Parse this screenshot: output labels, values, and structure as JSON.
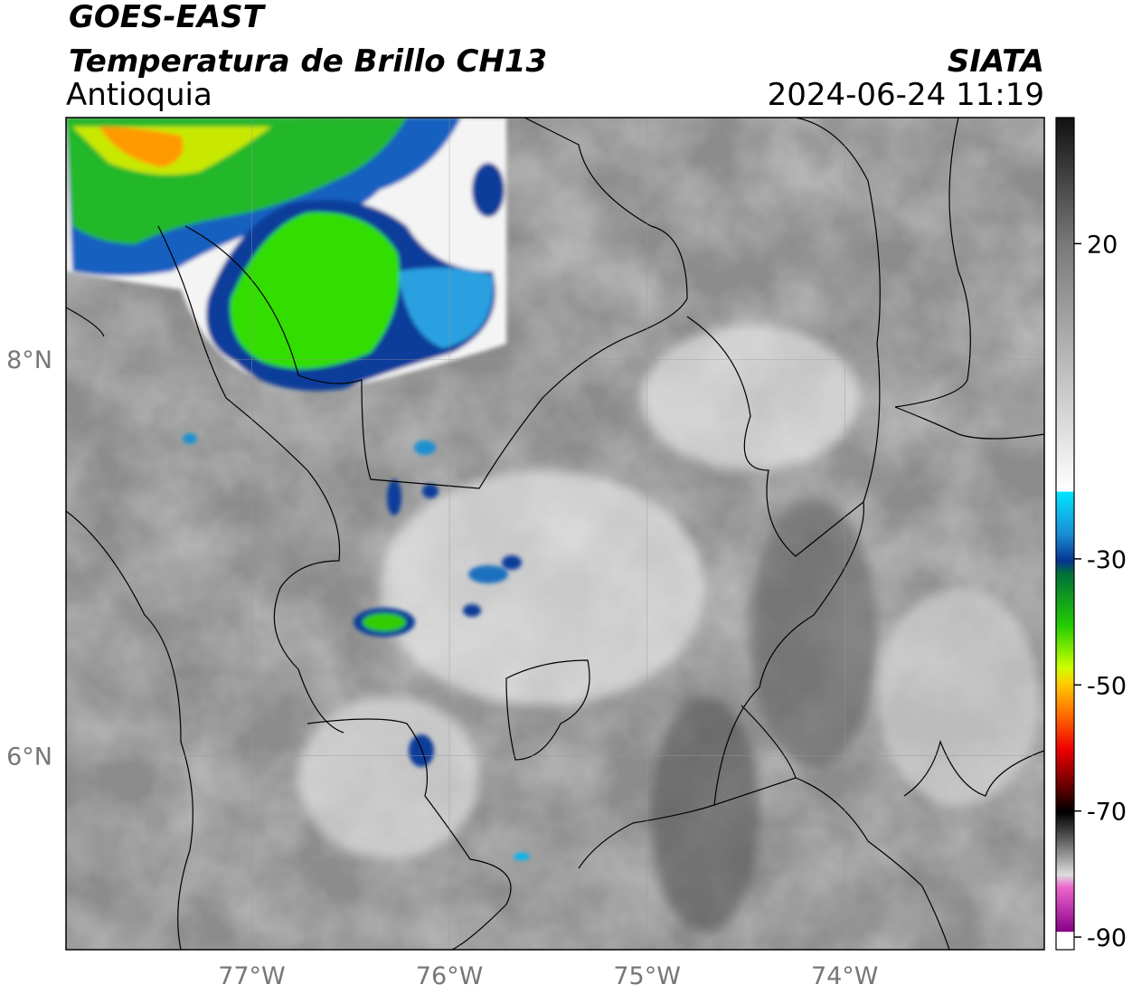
{
  "header": {
    "title": "GOES-EAST",
    "subtitle": "Temperatura de Brillo CH13",
    "region": "Antioquia",
    "source": "SIATA",
    "timestamp": "2024-06-24 11:19"
  },
  "map": {
    "xlim": [
      -77.94,
      -72.99
    ],
    "ylim": [
      5.02,
      9.22
    ],
    "xticks": [
      {
        "value": -77,
        "label": "77°W"
      },
      {
        "value": -76,
        "label": "76°W"
      },
      {
        "value": -75,
        "label": "75°W"
      },
      {
        "value": -74,
        "label": "74°W"
      }
    ],
    "yticks": [
      {
        "value": 8,
        "label": "8°N"
      },
      {
        "value": 6,
        "label": "6°N"
      }
    ],
    "grid": true
  },
  "colorbar": {
    "lim": [
      -92,
      40
    ],
    "ticks": [
      20,
      -30,
      -50,
      -70,
      -90
    ]
  }
}
